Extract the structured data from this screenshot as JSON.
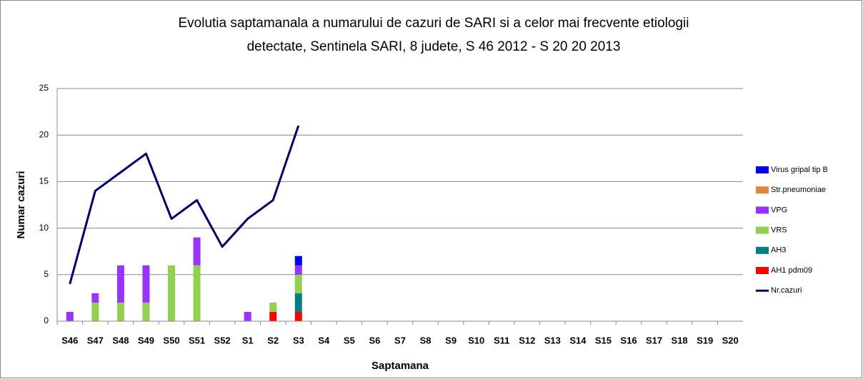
{
  "chart_data": {
    "type": "bar",
    "title": "Evolutia saptamanala a numarului de cazuri de SARI si a celor mai frecvente etiologii",
    "subtitle": "detectate, Sentinela SARI, 8 judete, S 46 2012 - S 20 20 2013",
    "x_label": "Saptamana",
    "y_label": "Numar cazuri",
    "categories": [
      "S46",
      "S47",
      "S48",
      "S49",
      "S50",
      "S51",
      "S52",
      "S1",
      "S2",
      "S3",
      "S4",
      "S5",
      "S6",
      "S7",
      "S8",
      "S9",
      "S10",
      "S11",
      "S12",
      "S13",
      "S14",
      "S15",
      "S16",
      "S17",
      "S18",
      "S19",
      "S20"
    ],
    "series": [
      {
        "name": "AH1 pdm09",
        "color": "#ff0000",
        "values": [
          0,
          0,
          0,
          0,
          0,
          0,
          0,
          0,
          1,
          1,
          null,
          null,
          null,
          null,
          null,
          null,
          null,
          null,
          null,
          null,
          null,
          null,
          null,
          null,
          null,
          null,
          null
        ]
      },
      {
        "name": "AH3",
        "color": "#008080",
        "values": [
          0,
          0,
          0,
          0,
          0,
          0,
          0,
          0,
          0,
          2,
          null,
          null,
          null,
          null,
          null,
          null,
          null,
          null,
          null,
          null,
          null,
          null,
          null,
          null,
          null,
          null,
          null
        ]
      },
      {
        "name": "VRS",
        "color": "#92d050",
        "values": [
          0,
          2,
          2,
          2,
          6,
          6,
          0,
          0,
          1,
          2,
          null,
          null,
          null,
          null,
          null,
          null,
          null,
          null,
          null,
          null,
          null,
          null,
          null,
          null,
          null,
          null,
          null
        ]
      },
      {
        "name": "VPG",
        "color": "#9933ff",
        "values": [
          1,
          1,
          4,
          4,
          0,
          3,
          0,
          1,
          0,
          1,
          null,
          null,
          null,
          null,
          null,
          null,
          null,
          null,
          null,
          null,
          null,
          null,
          null,
          null,
          null,
          null,
          null
        ]
      },
      {
        "name": "Str.pneumoniae",
        "color": "#e0853d",
        "values": [
          0,
          0,
          0,
          0,
          0,
          0,
          0,
          0,
          0,
          0,
          null,
          null,
          null,
          null,
          null,
          null,
          null,
          null,
          null,
          null,
          null,
          null,
          null,
          null,
          null,
          null,
          null
        ]
      },
      {
        "name": "Virus gripal tip B",
        "color": "#0000ff",
        "values": [
          0,
          0,
          0,
          0,
          0,
          0,
          0,
          0,
          0,
          1,
          null,
          null,
          null,
          null,
          null,
          null,
          null,
          null,
          null,
          null,
          null,
          null,
          null,
          null,
          null,
          null,
          null
        ]
      },
      {
        "name": "Nr.cazuri",
        "color": "#000066",
        "type": "line",
        "values": [
          4,
          14,
          16,
          18,
          11,
          13,
          8,
          11,
          13,
          21,
          null,
          null,
          null,
          null,
          null,
          null,
          null,
          null,
          null,
          null,
          null,
          null,
          null,
          null,
          null,
          null,
          null
        ]
      }
    ],
    "stacked": true,
    "ylim": [
      0,
      25
    ],
    "yticks": [
      0,
      5,
      10,
      15,
      20,
      25
    ],
    "grid": true,
    "legend": "right"
  }
}
